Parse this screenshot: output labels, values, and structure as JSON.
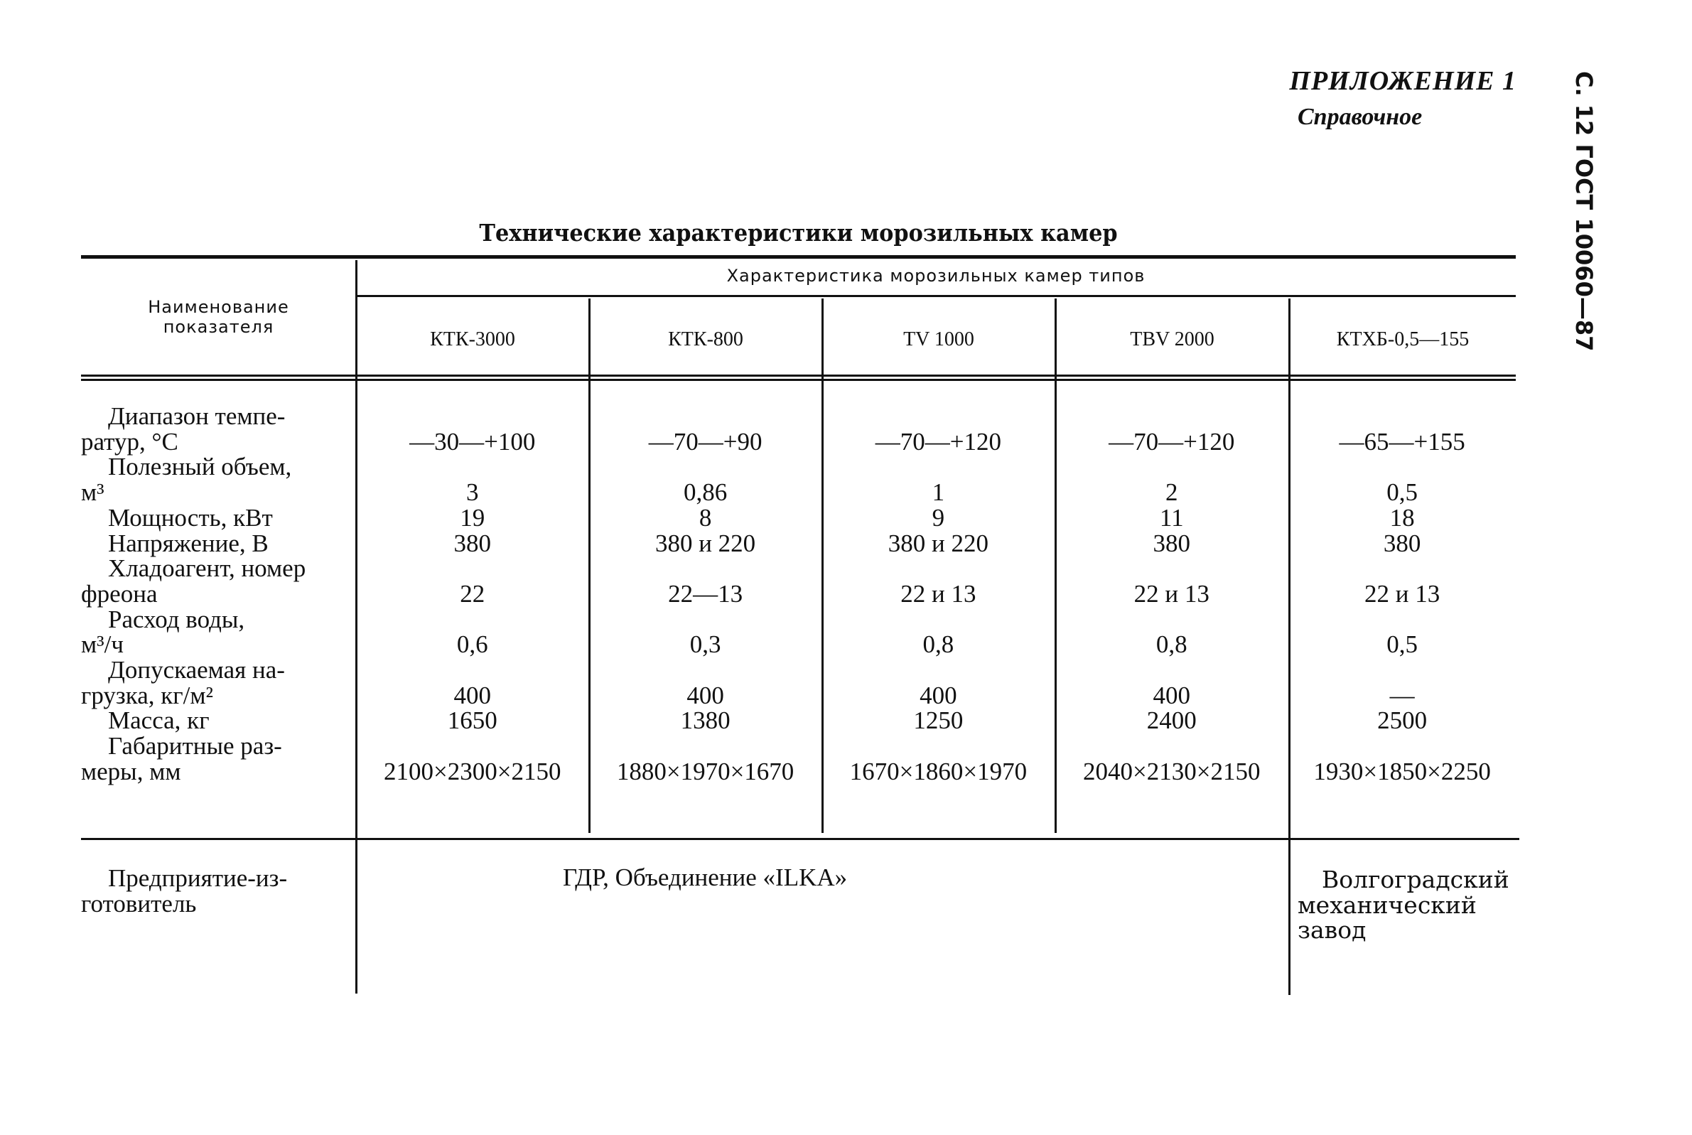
{
  "header": {
    "appendix": "ПРИЛОЖЕНИЕ 1",
    "reference": "Справочное",
    "side_label": "С. 12 ГОСТ 10060—87"
  },
  "table": {
    "title": "Технические характеристики морозильных камер",
    "param_header": [
      "Наименование",
      "показателя"
    ],
    "group_header": "Характеристика морозильных камер типов",
    "models": [
      "КТК-3000",
      "КТК-800",
      "TV 1000",
      "TBV 2000",
      "КТХБ-0,5—155"
    ],
    "rows": [
      {
        "label": [
          "Диапазон темпе-",
          "ратур, °С"
        ],
        "values": [
          "—30—+100",
          "—70—+90",
          "—70—+120",
          "—70—+120",
          "—65—+155"
        ]
      },
      {
        "label": [
          "Полезный объем,",
          "м³"
        ],
        "values": [
          "3",
          "0,86",
          "1",
          "2",
          "0,5"
        ]
      },
      {
        "label": [
          "Мощность, кВт"
        ],
        "values": [
          "19",
          "8",
          "9",
          "11",
          "18"
        ]
      },
      {
        "label": [
          "Напряжение, В"
        ],
        "values": [
          "380",
          "380 и 220",
          "380 и 220",
          "380",
          "380"
        ]
      },
      {
        "label": [
          "Хладоагент, номер",
          "фреона"
        ],
        "values": [
          "22",
          "22—13",
          "22 и 13",
          "22 и 13",
          "22 и 13"
        ]
      },
      {
        "label": [
          "Расход воды,",
          "м³/ч"
        ],
        "values": [
          "0,6",
          "0,3",
          "0,8",
          "0,8",
          "0,5"
        ]
      },
      {
        "label": [
          "Допускаемая на-",
          "грузка, кг/м²"
        ],
        "values": [
          "400",
          "400",
          "400",
          "400",
          "—"
        ]
      },
      {
        "label": [
          "Масса, кг"
        ],
        "values": [
          "1650",
          "1380",
          "1250",
          "2400",
          "2500"
        ]
      },
      {
        "label": [
          "Габаритные раз-",
          "меры, мм"
        ],
        "values": [
          "2100×2300×2150",
          "1880×1970×1670",
          "1670×1860×1970",
          "2040×2130×2150",
          "1930×1850×2250"
        ]
      }
    ],
    "manufacturer": {
      "label": [
        "Предприятие-из-",
        "готовитель"
      ],
      "gdr": "ГДР, Объединение «ILKA»",
      "volgograd": [
        "Волгоградский",
        "механический",
        "завод"
      ]
    }
  }
}
